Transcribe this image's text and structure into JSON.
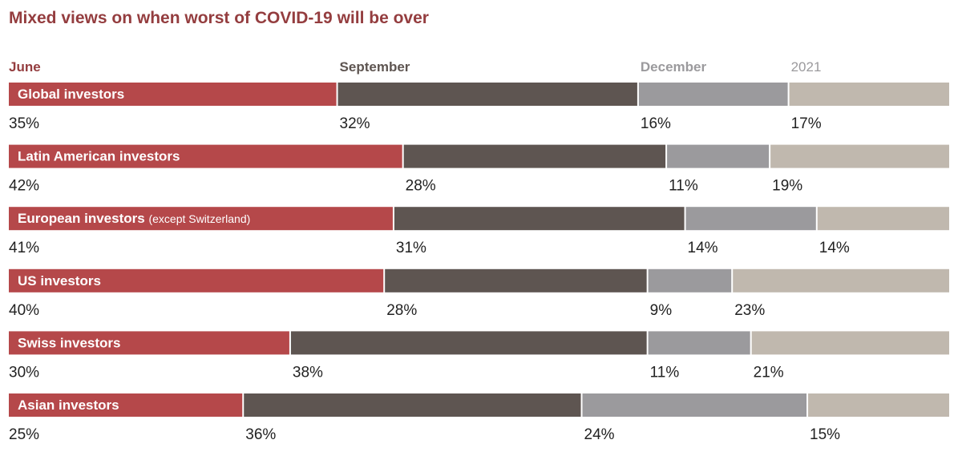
{
  "chart_data": {
    "type": "bar",
    "orientation": "horizontal-stacked-100",
    "title": "Mixed views on when worst of COVID-19 will be over",
    "series": [
      {
        "name": "June",
        "color": "#b5484a",
        "values": [
          35,
          42,
          41,
          40,
          30,
          25
        ]
      },
      {
        "name": "September",
        "color": "#5e5551",
        "values": [
          32,
          28,
          31,
          28,
          38,
          36
        ]
      },
      {
        "name": "December",
        "color": "#9b9a9d",
        "values": [
          16,
          11,
          14,
          9,
          11,
          24
        ]
      },
      {
        "name": "2021",
        "color": "#c0b8ae",
        "values": [
          17,
          19,
          14,
          23,
          21,
          15
        ]
      }
    ],
    "categories": [
      {
        "label": "Global investors",
        "note": ""
      },
      {
        "label": "Latin American investors",
        "note": ""
      },
      {
        "label": "European investors",
        "note": "(except Switzerland)"
      },
      {
        "label": "US investors",
        "note": ""
      },
      {
        "label": "Swiss investors",
        "note": ""
      },
      {
        "label": "Asian investors",
        "note": ""
      }
    ],
    "value_suffix": "%",
    "xlim": [
      0,
      100
    ],
    "legend_position": "top",
    "title_color": "#943d3f",
    "legend_colors": [
      "#943d3f",
      "#5e5551",
      "#9b9a9d",
      "#9b9a9d"
    ]
  }
}
